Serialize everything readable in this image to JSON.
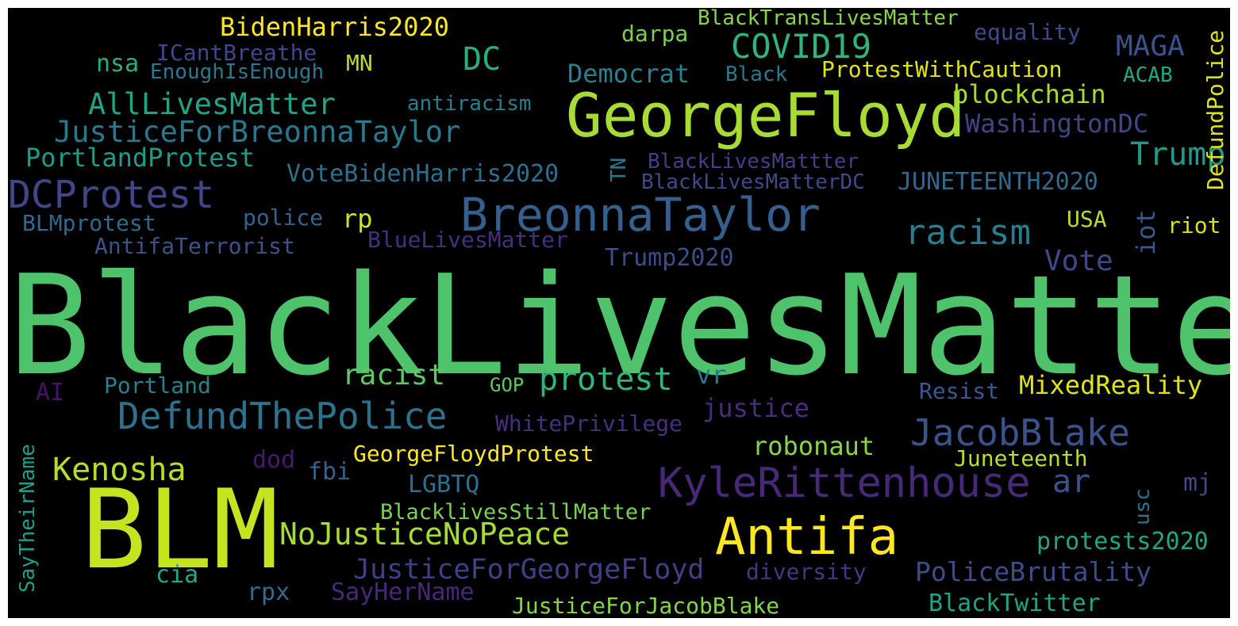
{
  "words": [
    {
      "text": "BlackLivesMatter",
      "color": "#4ec36b"
    },
    {
      "text": "BLM",
      "color": "#c4e41f"
    },
    {
      "text": "GeorgeFloyd",
      "color": "#a8db34"
    },
    {
      "text": "BreonnaTaylor",
      "color": "#35608d"
    },
    {
      "text": "Antifa",
      "color": "#fde725"
    },
    {
      "text": "KyleRittenhouse",
      "color": "#482878"
    },
    {
      "text": "DefundThePolice",
      "color": "#2c728e"
    },
    {
      "text": "JacobBlake",
      "color": "#3b528b"
    },
    {
      "text": "DCProtest",
      "color": "#404688"
    },
    {
      "text": "COVID19",
      "color": "#2fb47c"
    },
    {
      "text": "racism",
      "color": "#287c8e"
    },
    {
      "text": "AllLivesMatter",
      "color": "#20a486"
    },
    {
      "text": "JusticeForBreonnaTaylor",
      "color": "#2a788e"
    },
    {
      "text": "protest",
      "color": "#31b57b"
    },
    {
      "text": "NoJusticeNoPeace",
      "color": "#a5db36"
    },
    {
      "text": "Kenosha",
      "color": "#b5de2b"
    },
    {
      "text": "JusticeForGeorgeFloyd",
      "color": "#433e85"
    },
    {
      "text": "PoliceBrutality",
      "color": "#3e4c8a"
    },
    {
      "text": "Trump",
      "color": "#1f9a8a"
    },
    {
      "text": "DC",
      "color": "#29af7f"
    },
    {
      "text": "BidenHarris2020",
      "color": "#fde725"
    },
    {
      "text": "MAGA",
      "color": "#3b528b"
    },
    {
      "text": "Democrat",
      "color": "#26828e"
    },
    {
      "text": "racist",
      "color": "#5ec962"
    },
    {
      "text": "Vote",
      "color": "#3e4a89"
    },
    {
      "text": "MixedReality",
      "color": "#dfe318"
    },
    {
      "text": "justice",
      "color": "#472d7b"
    },
    {
      "text": "robonaut",
      "color": "#86d549"
    },
    {
      "text": "WashingtonDC",
      "color": "#414487"
    },
    {
      "text": "blockchain",
      "color": "#a5db36"
    },
    {
      "text": "ar",
      "color": "#3b528b"
    },
    {
      "text": "PortlandProtest",
      "color": "#1e9c89"
    },
    {
      "text": "VoteBidenHarris2020",
      "color": "#2d708e"
    },
    {
      "text": "JUNETEENTH2020",
      "color": "#31688e"
    },
    {
      "text": "protests2020",
      "color": "#22a785"
    },
    {
      "text": "GeorgeFloydProtest",
      "color": "#fde725"
    },
    {
      "text": "LGBTQ",
      "color": "#2d708e"
    },
    {
      "text": "BlacklivesStillMatter",
      "color": "#7ad151"
    },
    {
      "text": "JusticeForJacobBlake",
      "color": "#86d549"
    },
    {
      "text": "BlackTwitter",
      "color": "#20a486"
    },
    {
      "text": "SayHerName",
      "color": "#482878"
    },
    {
      "text": "diversity",
      "color": "#453781"
    },
    {
      "text": "rpx",
      "color": "#2f6c8e"
    },
    {
      "text": "cia",
      "color": "#22a884"
    },
    {
      "text": "Juneteenth",
      "color": "#b8de29"
    },
    {
      "text": "mj",
      "color": "#3e4a89"
    },
    {
      "text": "Resist",
      "color": "#38598c"
    },
    {
      "text": "riot",
      "color": "#d8e219"
    },
    {
      "text": "USA",
      "color": "#b5de2b"
    },
    {
      "text": "Trump2020",
      "color": "#3e4c8a"
    },
    {
      "text": "BlueLivesMatter",
      "color": "#46307e"
    },
    {
      "text": "AntifaTerrorist",
      "color": "#3b528b"
    },
    {
      "text": "BLMprotest",
      "color": "#31688e"
    },
    {
      "text": "police",
      "color": "#32648e"
    },
    {
      "text": "rp",
      "color": "#d2e21b"
    },
    {
      "text": "Portland",
      "color": "#26828e"
    },
    {
      "text": "AI",
      "color": "#471164"
    },
    {
      "text": "GOP",
      "color": "#5ec962"
    },
    {
      "text": "vr",
      "color": "#2a788e"
    },
    {
      "text": "WhitePrivilege",
      "color": "#46307e"
    },
    {
      "text": "dod",
      "color": "#481a6c"
    },
    {
      "text": "fbi",
      "color": "#33638d"
    },
    {
      "text": "BlackLivesMattter",
      "color": "#433e85"
    },
    {
      "text": "BlackLivesMatterDC",
      "color": "#3e4a89"
    },
    {
      "text": "antiracism",
      "color": "#277f8e"
    },
    {
      "text": "ICantBreathe",
      "color": "#404688"
    },
    {
      "text": "EnoughIsEnough",
      "color": "#2a788e"
    },
    {
      "text": "nsa",
      "color": "#29af7f"
    },
    {
      "text": "MN",
      "color": "#bade28"
    },
    {
      "text": "darpa",
      "color": "#7ad151"
    },
    {
      "text": "BlackTransLivesMatter",
      "color": "#86d549"
    },
    {
      "text": "equality",
      "color": "#3e4a89"
    },
    {
      "text": "Black",
      "color": "#2a788e"
    },
    {
      "text": "ProtestWithCaution",
      "color": "#dfe318"
    },
    {
      "text": "ACAB",
      "color": "#22a884"
    },
    {
      "text": "DefundPolice",
      "color": "#dfe318"
    },
    {
      "text": "TN",
      "color": "#2a788e"
    },
    {
      "text": "iot",
      "color": "#38598c"
    },
    {
      "text": "usc",
      "color": "#2c728e"
    },
    {
      "text": "SayTheirName",
      "color": "#1f9e89"
    }
  ]
}
